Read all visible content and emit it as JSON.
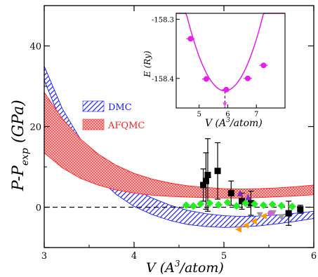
{
  "chart_data": [
    {
      "type": "area",
      "xlabel_main": "V (A",
      "xlabel_sup": "3",
      "xlabel_tail": "/atom)",
      "ylabel_main": "P-P",
      "ylabel_sub": "exp",
      "ylabel_tail": " (GPa)",
      "xlim": [
        3,
        6
      ],
      "ylim": [
        -10,
        50
      ],
      "x_ticks": [
        3,
        4,
        5,
        6
      ],
      "y_ticks": [
        -10,
        0,
        20,
        40
      ],
      "y_tick_labels": [
        0,
        20,
        40
      ],
      "x_tick_labels": [
        "3",
        "4",
        "5",
        "6"
      ],
      "grid": false,
      "legend_position": "center-left",
      "series": [
        {
          "name": "DMC",
          "color": "#1a1aff",
          "pattern": "diagonal-hatch",
          "x": [
            3.0,
            3.2,
            3.4,
            3.6,
            3.8,
            4.0,
            4.2,
            4.4,
            4.6,
            4.8,
            5.0,
            5.2,
            5.4,
            5.6,
            5.8,
            6.0
          ],
          "upper": [
            35.0,
            24.5,
            17.0,
            11.5,
            7.5,
            4.5,
            2.3,
            0.5,
            -0.8,
            -1.6,
            -2.1,
            -2.3,
            -2.2,
            -1.9,
            -1.5,
            -1.0
          ],
          "lower": [
            31.5,
            20.5,
            12.8,
            7.3,
            3.2,
            0.2,
            -1.8,
            -3.3,
            -4.3,
            -4.8,
            -5.0,
            -4.9,
            -4.6,
            -4.1,
            -3.5,
            -2.8
          ]
        },
        {
          "name": "AFQMC",
          "color": "#ff2020",
          "pattern": "cross-hatch",
          "x": [
            3.0,
            3.2,
            3.4,
            3.6,
            3.8,
            4.0,
            4.2,
            4.4,
            4.6,
            4.8,
            5.0,
            5.2,
            5.4,
            5.6,
            5.8,
            6.0
          ],
          "upper": [
            28.5,
            22.0,
            17.0,
            13.2,
            10.4,
            8.4,
            7.0,
            6.0,
            5.3,
            4.9,
            4.6,
            4.5,
            4.6,
            4.8,
            5.1,
            5.5
          ],
          "lower": [
            13.5,
            9.8,
            7.2,
            5.5,
            4.3,
            3.5,
            3.0,
            2.7,
            2.5,
            2.4,
            2.3,
            2.3,
            2.4,
            2.6,
            2.8,
            3.1
          ]
        }
      ],
      "experimental_points": [
        {
          "marker": "square",
          "color": "#000000",
          "x": 4.77,
          "y": 5.5,
          "err": 4
        },
        {
          "marker": "square",
          "color": "#000000",
          "x": 4.8,
          "y": 6.5,
          "err": 7
        },
        {
          "marker": "square",
          "color": "#000000",
          "x": 4.82,
          "y": 8.0,
          "err": 9
        },
        {
          "marker": "square",
          "color": "#000000",
          "x": 4.93,
          "y": 9.0,
          "err": 7
        },
        {
          "marker": "square",
          "color": "#000000",
          "x": 5.08,
          "y": 3.5,
          "err": 3
        },
        {
          "marker": "square",
          "color": "#000000",
          "x": 5.2,
          "y": 1.5,
          "err": 2
        },
        {
          "marker": "square",
          "color": "#000000",
          "x": 5.3,
          "y": 1.0,
          "err": 3
        },
        {
          "marker": "square",
          "color": "#000000",
          "x": 5.72,
          "y": -1.5,
          "err": 3
        },
        {
          "marker": "square",
          "color": "#000000",
          "x": 5.85,
          "y": -0.5,
          "err": 1
        },
        {
          "marker": "triangle",
          "color": "#7b2fbf",
          "x": 5.18,
          "y": 3.5,
          "err": 0
        },
        {
          "marker": "triangle",
          "color": "#7b2fbf",
          "x": 5.27,
          "y": 2.5,
          "err": 0
        },
        {
          "marker": "diamond",
          "color": "#22ee22",
          "x": 4.58,
          "y": 0.5,
          "err": 0
        },
        {
          "marker": "diamond",
          "color": "#22ee22",
          "x": 4.66,
          "y": 0.3,
          "err": 0
        },
        {
          "marker": "diamond",
          "color": "#22ee22",
          "x": 4.74,
          "y": 0.8,
          "err": 0
        },
        {
          "marker": "diamond",
          "color": "#22ee22",
          "x": 4.84,
          "y": 1.0,
          "err": 0
        },
        {
          "marker": "diamond",
          "color": "#22ee22",
          "x": 4.94,
          "y": 0.6,
          "err": 0
        },
        {
          "marker": "diamond",
          "color": "#22ee22",
          "x": 5.04,
          "y": 1.2,
          "err": 0
        },
        {
          "marker": "diamond",
          "color": "#22ee22",
          "x": 5.14,
          "y": 0.3,
          "err": 0
        },
        {
          "marker": "diamond",
          "color": "#22ee22",
          "x": 5.24,
          "y": 1.0,
          "err": 0
        },
        {
          "marker": "diamond",
          "color": "#22ee22",
          "x": 5.34,
          "y": 0.8,
          "err": 0
        },
        {
          "marker": "diamond",
          "color": "#22ee22",
          "x": 5.44,
          "y": 0.5,
          "err": 0
        },
        {
          "marker": "diamond",
          "color": "#22ee22",
          "x": 5.54,
          "y": 0.7,
          "err": 0
        },
        {
          "marker": "diamond",
          "color": "#22ee22",
          "x": 5.64,
          "y": 0.4,
          "err": 0
        },
        {
          "marker": "diamond",
          "color": "#22ee22",
          "x": 5.76,
          "y": 0.2,
          "err": 0
        },
        {
          "marker": "left-triangle",
          "color": "#ff9900",
          "x": 5.16,
          "y": -5.5,
          "err": 0
        },
        {
          "marker": "left-triangle",
          "color": "#ff9900",
          "x": 5.24,
          "y": -4.5,
          "err": 0
        },
        {
          "marker": "left-triangle",
          "color": "#ff9900",
          "x": 5.33,
          "y": -3.5,
          "err": 0
        },
        {
          "marker": "left-triangle",
          "color": "#ff9900",
          "x": 5.44,
          "y": -2.2,
          "err": 0
        },
        {
          "marker": "down-triangle",
          "color": "#999999",
          "x": 5.4,
          "y": -2.0,
          "err": 0
        },
        {
          "marker": "down-triangle",
          "color": "#999999",
          "x": 5.55,
          "y": -1.5,
          "err": 0
        },
        {
          "marker": "down-triangle",
          "color": "#999999",
          "x": 5.64,
          "y": -2.5,
          "err": 0
        },
        {
          "marker": "circle",
          "color": "#cc66cc",
          "x": 5.52,
          "y": -1.5,
          "err": 0
        }
      ],
      "reference_line": {
        "y": 0,
        "style": "dashed"
      }
    },
    {
      "type": "line",
      "xlabel_main": "V (A",
      "xlabel_sup": "3",
      "xlabel_tail": "/atom)",
      "ylabel": "E (Ry)",
      "xlim": [
        4.2,
        8.0
      ],
      "ylim": [
        -158.45,
        -158.29
      ],
      "x_ticks": [
        5,
        6,
        7
      ],
      "y_ticks": [
        -158.3,
        -158.4
      ],
      "y_tick_labels": [
        "-158.3",
        "-158.4"
      ],
      "color": "#e81ee8",
      "points": [
        {
          "x": 4.7,
          "y": -158.333,
          "err": 0.006
        },
        {
          "x": 5.25,
          "y": -158.401,
          "err": 0.004
        },
        {
          "x": 5.95,
          "y": -158.419,
          "err": 0.004
        },
        {
          "x": 6.7,
          "y": -158.4,
          "err": 0.004
        },
        {
          "x": 7.25,
          "y": -158.378,
          "err": 0.004
        }
      ],
      "curve": {
        "x_min": 5.9,
        "y_min": -158.421,
        "curvature": 0.072
      },
      "minimum_marker": {
        "x": 5.9,
        "style": "dashed"
      }
    }
  ],
  "legend": [
    {
      "label": "DMC",
      "color": "#1a1aff"
    },
    {
      "label": "AFQMC",
      "color": "#ff2020"
    }
  ]
}
